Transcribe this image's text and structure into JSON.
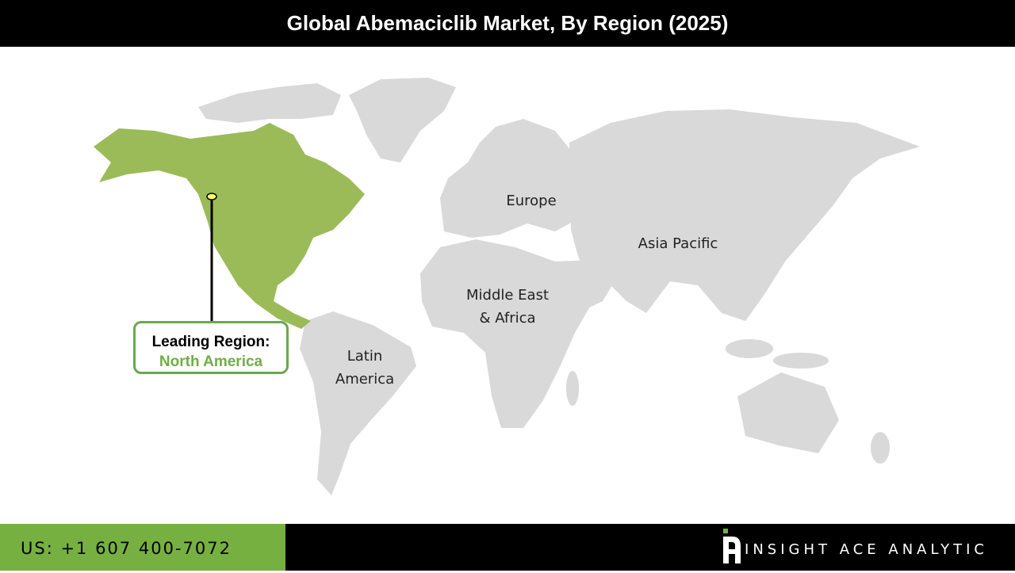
{
  "title": "Global Abemaciclib Market, By Region (2025)",
  "regions": {
    "europe": "Europe",
    "asia_pacific": "Asia Pacific",
    "mea_line1": "Middle East",
    "mea_line2": "& Africa",
    "latam_line1": "Latin",
    "latam_line2": "America"
  },
  "callout": {
    "label": "Leading Region:",
    "region": "North America"
  },
  "colors": {
    "highlight": "#9BBB59",
    "land": "#D9D9D9",
    "accent": "#76B041"
  },
  "footer": {
    "phone": "US: +1 607 400-7072",
    "brand": "INSIGHT ACE ANALYTIC"
  }
}
